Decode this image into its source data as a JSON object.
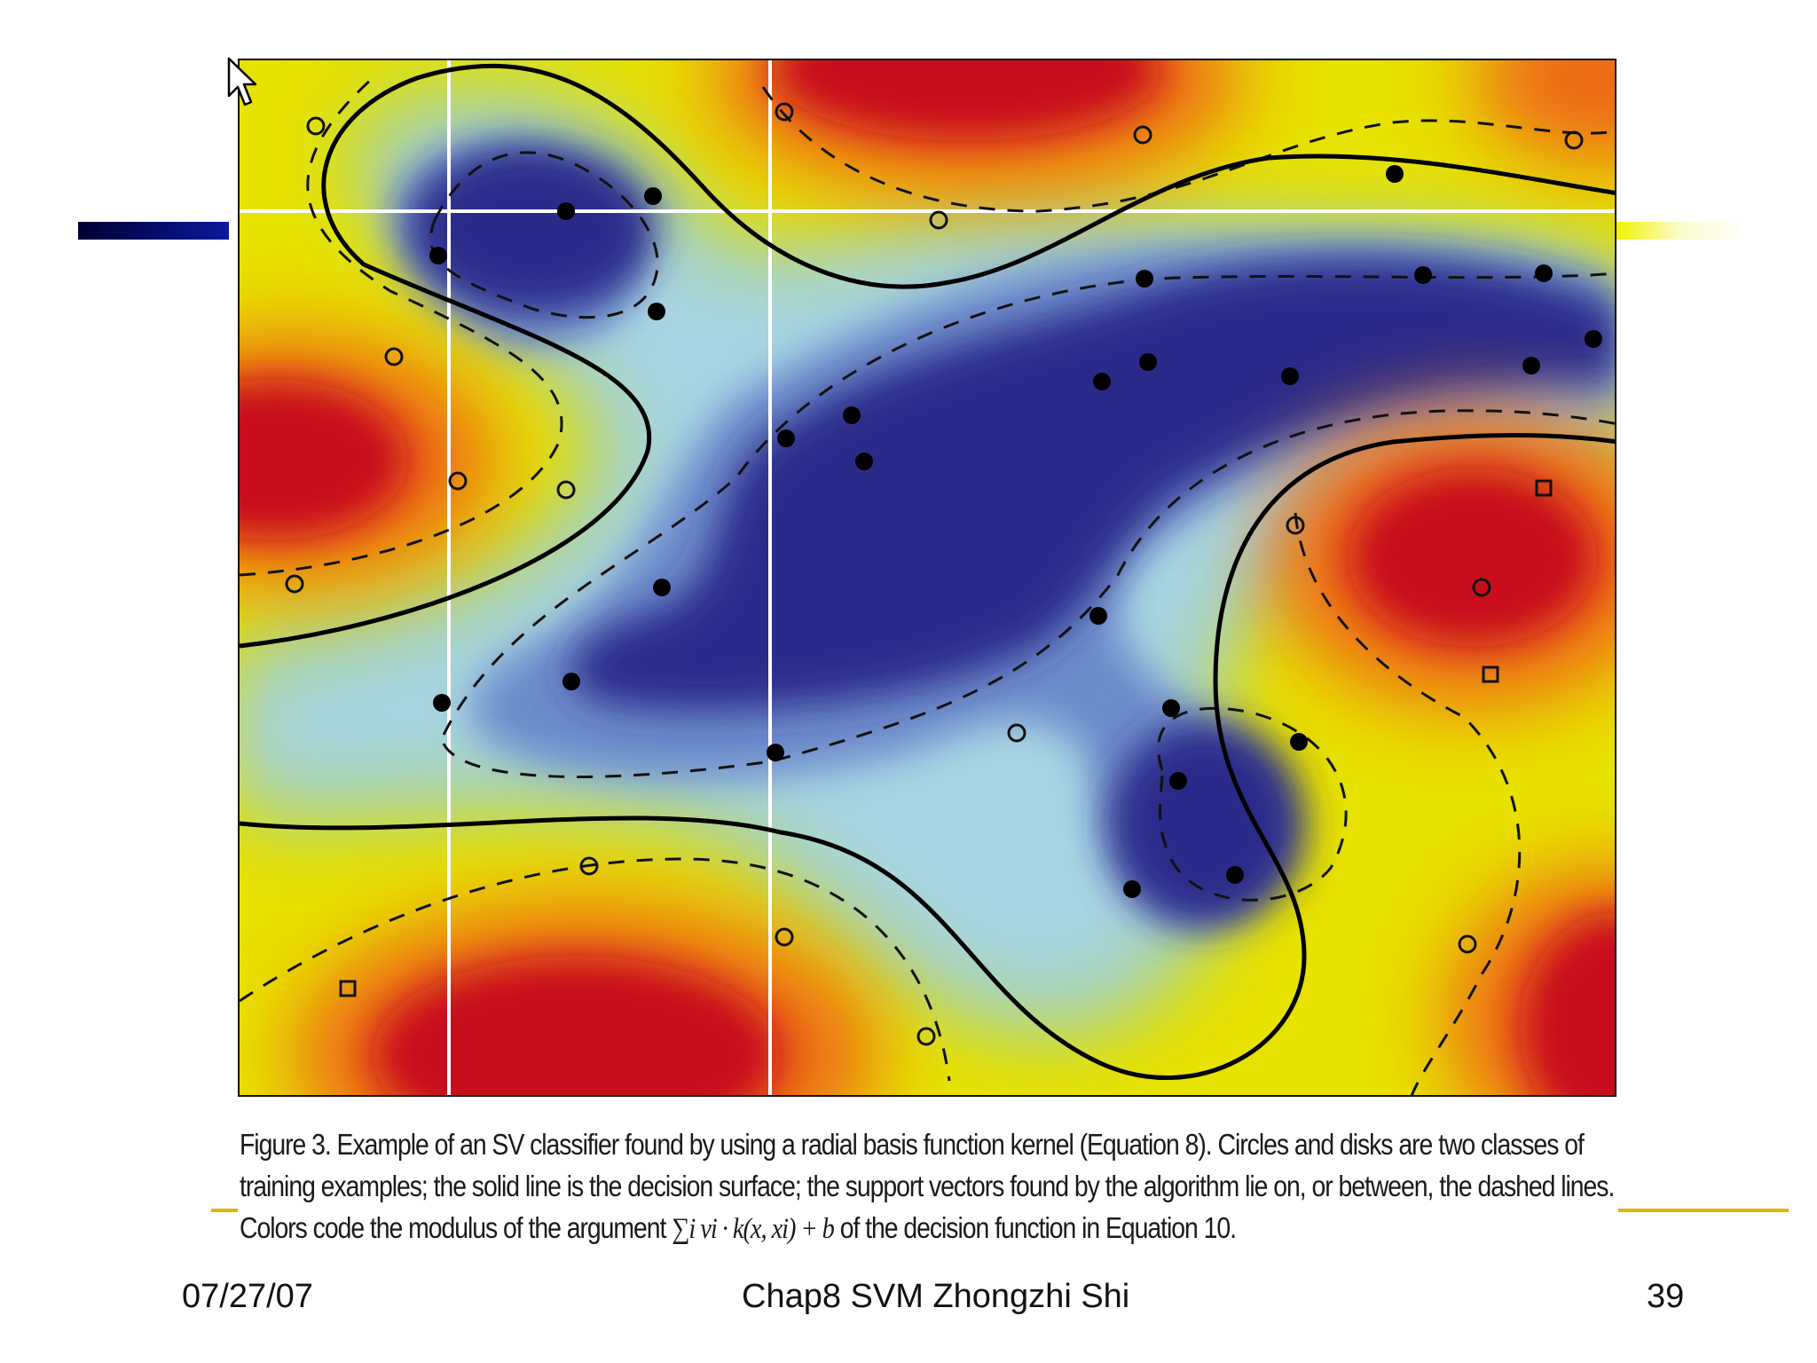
{
  "slide": {
    "caption": {
      "part1": "Figure 3. Example of an SV classifier found by using a radial basis function kernel (Equation 8). Circles and disks are two classes of training examples; the solid line is the decision surface; the support vectors found by the algorithm lie on, or between, the dashed lines. Colors code the modulus of the argument",
      "math": "∑i vi · k(x, xi) + b",
      "part2": "of the decision function in Equation 10."
    },
    "footer": {
      "date": "07/27/07",
      "title": "Chap8 SVM Zhongzhi Shi",
      "page_number": "39"
    }
  },
  "colors": {
    "red": "#c8101a",
    "orange": "#ee6a12",
    "yellow": "#eeee00",
    "green": "#a6d28a",
    "light_blue": "#a9d6e3",
    "mid_blue": "#6d8ccc",
    "dark_blue": "#2b2a8a",
    "accent_gold": "#e3b100"
  },
  "icons": [
    "mouse-cursor-icon"
  ]
}
